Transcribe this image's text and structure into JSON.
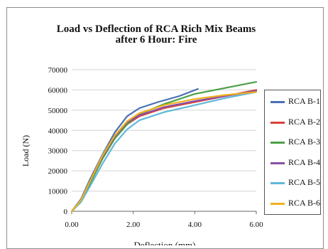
{
  "chart_data": {
    "type": "line",
    "title": "Load vs Deflection of RCA Rich Mix Beams",
    "subtitle": "after 6 Hour: Fire",
    "xlabel": "Deflection (mm)",
    "ylabel": "Load (N)",
    "xlim": [
      0,
      6
    ],
    "ylim": [
      0,
      70000
    ],
    "x_ticks": [
      "0.00",
      "2.00",
      "4.00",
      "6.00"
    ],
    "y_ticks": [
      "0",
      "10000",
      "20000",
      "30000",
      "40000",
      "50000",
      "60000",
      "70000"
    ],
    "grid": "horizontal",
    "legend_position": "right",
    "series": [
      {
        "name": "RCA B-1",
        "color": "#4a6fb5",
        "x": [
          0,
          0.3,
          0.6,
          1.0,
          1.4,
          1.8,
          2.2,
          2.8,
          3.5,
          4.1
        ],
        "y": [
          0,
          6000,
          16000,
          28000,
          39000,
          47000,
          51000,
          54000,
          57000,
          60500
        ]
      },
      {
        "name": "RCA B-2",
        "color": "#d9413b",
        "x": [
          0,
          0.3,
          0.6,
          1.0,
          1.4,
          1.8,
          2.2,
          3.0,
          4.0,
          5.0,
          6.0
        ],
        "y": [
          0,
          5000,
          14000,
          26000,
          36000,
          43000,
          47000,
          51000,
          54000,
          57000,
          60000
        ]
      },
      {
        "name": "RCA B-3",
        "color": "#4aa147",
        "x": [
          0,
          0.3,
          0.6,
          1.0,
          1.4,
          1.8,
          2.2,
          3.0,
          4.0,
          5.0,
          6.0
        ],
        "y": [
          0,
          5000,
          14000,
          26000,
          36000,
          43000,
          48000,
          53000,
          58000,
          61000,
          64000
        ]
      },
      {
        "name": "RCA B-4",
        "color": "#8a4fa6",
        "x": [
          0,
          0.3,
          0.6,
          1.0,
          1.4,
          1.8,
          2.2,
          3.0,
          4.0,
          5.0,
          6.0
        ],
        "y": [
          0,
          5500,
          15000,
          27000,
          37000,
          44000,
          47500,
          51500,
          54500,
          57000,
          59500
        ]
      },
      {
        "name": "RCA B-5",
        "color": "#5fb8d9",
        "x": [
          0,
          0.3,
          0.6,
          1.0,
          1.4,
          1.8,
          2.2,
          3.0,
          4.0,
          5.0,
          6.0
        ],
        "y": [
          0,
          4500,
          12500,
          23500,
          33500,
          40500,
          45000,
          49000,
          52500,
          56000,
          59000
        ]
      },
      {
        "name": "RCA B-6",
        "color": "#f0b020",
        "x": [
          0,
          0.3,
          0.6,
          1.0,
          1.4,
          1.8,
          2.2,
          3.0,
          4.0,
          5.0,
          6.0
        ],
        "y": [
          0,
          5500,
          15000,
          27500,
          37500,
          44500,
          48500,
          52500,
          55500,
          57500,
          59000
        ]
      }
    ]
  }
}
